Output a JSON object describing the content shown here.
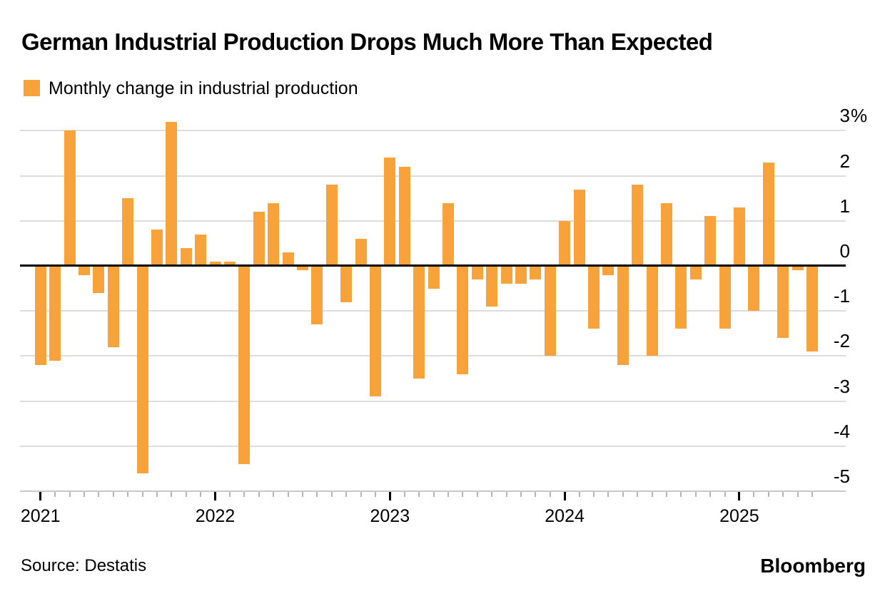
{
  "title": "German Industrial Production Drops Much More Than Expected",
  "legend": {
    "label": "Monthly change in industrial production",
    "swatch_color": "#F8A23C"
  },
  "source": "Source: Destatis",
  "brand": "Bloomberg",
  "colors": {
    "bar": "#F8A23C",
    "zero_line": "#000000",
    "gridline": "#DCDCDC",
    "axis_line": "#C9C9C9",
    "tick_minor": "#B5B5B5",
    "tick_year": "#000000"
  },
  "y_axis": {
    "labels": [
      "3",
      "2",
      "1",
      "0",
      "-1",
      "-2",
      "-3",
      "-4",
      "-5"
    ],
    "values": [
      3,
      2,
      1,
      0,
      -1,
      -2,
      -3,
      -4,
      -5
    ],
    "percent_suffix": "%"
  },
  "x_axis": {
    "year_labels": [
      "2021",
      "2022",
      "2023",
      "2024",
      "2025"
    ]
  },
  "chart_data": {
    "type": "bar",
    "title": "German Industrial Production Drops Much More Than Expected",
    "series_name": "Monthly change in industrial production",
    "unit": "percent, month-over-month",
    "ylabel": "%",
    "ylim": [
      -5,
      3
    ],
    "grid": "horizontal",
    "legend_position": "top-left",
    "x": [
      "2021-01",
      "2021-02",
      "2021-03",
      "2021-04",
      "2021-05",
      "2021-06",
      "2021-07",
      "2021-08",
      "2021-09",
      "2021-10",
      "2021-11",
      "2021-12",
      "2022-01",
      "2022-02",
      "2022-03",
      "2022-04",
      "2022-05",
      "2022-06",
      "2022-07",
      "2022-08",
      "2022-09",
      "2022-10",
      "2022-11",
      "2022-12",
      "2023-01",
      "2023-02",
      "2023-03",
      "2023-04",
      "2023-05",
      "2023-06",
      "2023-07",
      "2023-08",
      "2023-09",
      "2023-10",
      "2023-11",
      "2023-12",
      "2024-01",
      "2024-02",
      "2024-03",
      "2024-04",
      "2024-05",
      "2024-06",
      "2024-07",
      "2024-08",
      "2024-09",
      "2024-10",
      "2024-11",
      "2024-12",
      "2025-01",
      "2025-02",
      "2025-03",
      "2025-04",
      "2025-05",
      "2025-06"
    ],
    "values": [
      -2.2,
      -2.1,
      3.0,
      -0.2,
      -0.6,
      -1.8,
      1.5,
      -4.6,
      0.8,
      3.2,
      0.4,
      0.7,
      0.1,
      0.1,
      -4.4,
      1.2,
      1.4,
      0.3,
      -0.1,
      -1.3,
      1.8,
      -0.8,
      0.6,
      -2.9,
      2.4,
      2.2,
      -2.5,
      -0.5,
      1.4,
      -2.4,
      -0.3,
      -0.9,
      -0.4,
      -0.4,
      -0.3,
      -2.0,
      1.0,
      1.7,
      -1.4,
      -0.2,
      -2.2,
      1.8,
      -2.0,
      1.4,
      -1.4,
      -0.3,
      1.1,
      -1.4,
      1.3,
      -1.0,
      2.3,
      -1.6,
      -0.1,
      -1.9
    ]
  }
}
